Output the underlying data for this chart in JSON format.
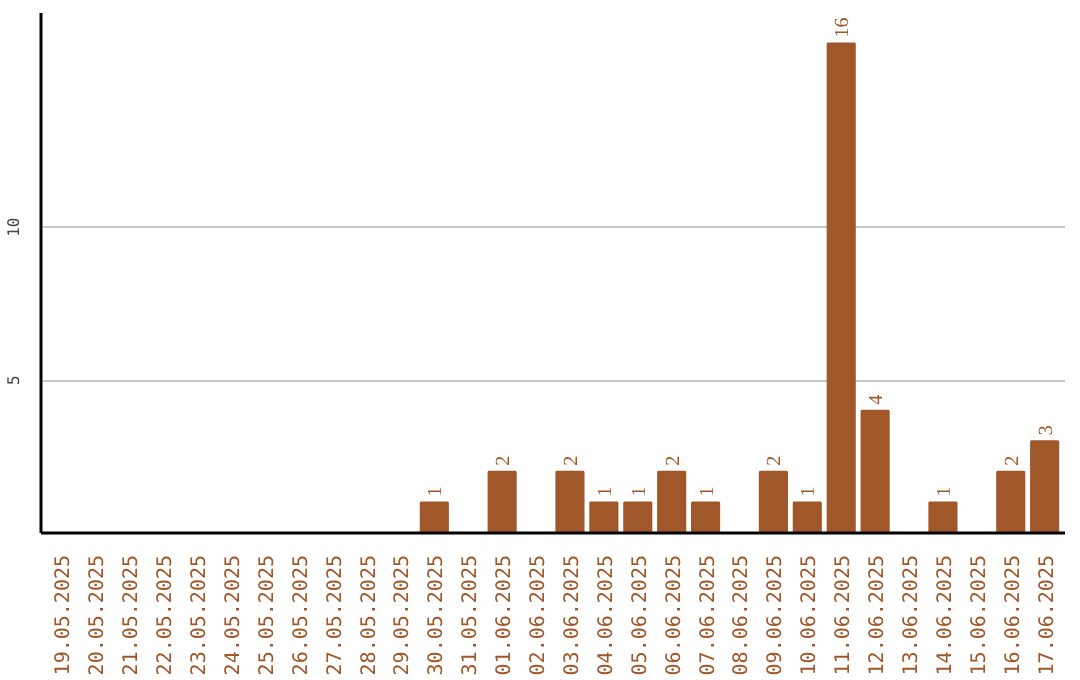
{
  "chart_data": {
    "type": "bar",
    "categories": [
      "19.05.2025",
      "20.05.2025",
      "21.05.2025",
      "22.05.2025",
      "23.05.2025",
      "24.05.2025",
      "25.05.2025",
      "26.05.2025",
      "27.05.2025",
      "28.05.2025",
      "29.05.2025",
      "30.05.2025",
      "31.05.2025",
      "01.06.2025",
      "02.06.2025",
      "03.06.2025",
      "04.06.2025",
      "05.06.2025",
      "06.06.2025",
      "07.06.2025",
      "08.06.2025",
      "09.06.2025",
      "10.06.2025",
      "11.06.2025",
      "12.06.2025",
      "13.06.2025",
      "14.06.2025",
      "15.06.2025",
      "16.06.2025",
      "17.06.2025"
    ],
    "values": [
      0,
      0,
      0,
      0,
      0,
      0,
      0,
      0,
      0,
      0,
      0,
      1,
      0,
      2,
      0,
      2,
      1,
      1,
      2,
      1,
      0,
      2,
      1,
      16,
      4,
      0,
      1,
      0,
      2,
      3
    ],
    "value_labels": [
      null,
      null,
      null,
      null,
      null,
      null,
      null,
      null,
      null,
      null,
      null,
      "1",
      null,
      "2",
      null,
      "2",
      "1",
      "1",
      "2",
      "1",
      null,
      "2",
      "1",
      "16",
      "4",
      null,
      "1",
      null,
      "2",
      "3"
    ],
    "color": "#a0572a",
    "ylim": [
      0,
      17
    ],
    "yticks": [
      5,
      10
    ],
    "grid": "y"
  }
}
